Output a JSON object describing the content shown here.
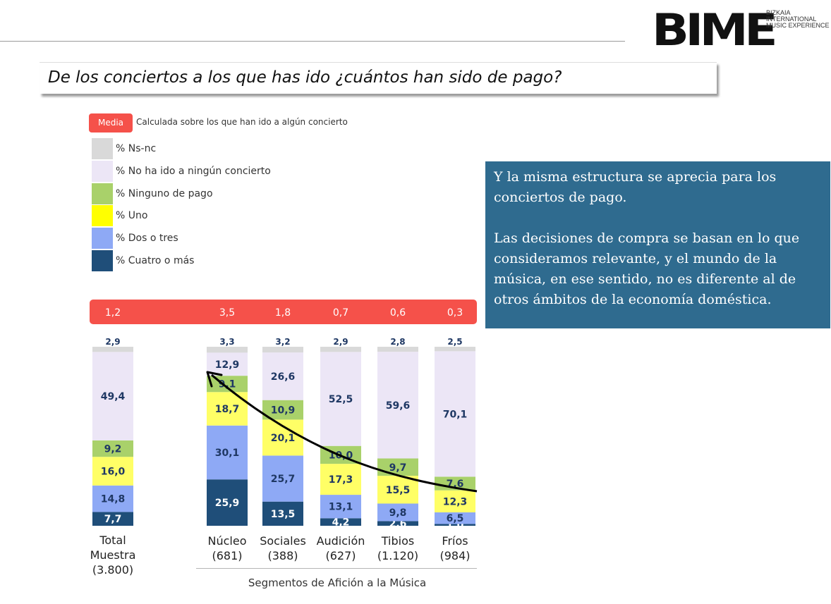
{
  "header": {
    "question": "De los conciertos a los que has ido ¿cuántos han sido de pago?",
    "logo": {
      "word": "BIME",
      "lines": [
        "BIZKAIA",
        "INTERNATIONAL",
        "MUSIC EXPERIENCE"
      ]
    }
  },
  "media_badge": "Media",
  "media_note": "Calculada sobre los que han ido a algún concierto",
  "legend": [
    {
      "label": "% Ns-nc",
      "color": "#d9d9d9"
    },
    {
      "label": "% No ha ido a ningún concierto",
      "color": "#ece6f6"
    },
    {
      "label": "% Ninguno de pago",
      "color": "#a9d16a"
    },
    {
      "label": "% Uno",
      "color": "#ffff00"
    },
    {
      "label": "% Dos o tres",
      "color": "#8ea9f5"
    },
    {
      "label": "% Cuatro o más",
      "color": "#1f4e79"
    }
  ],
  "text_box": {
    "paragraph1": "Y la misma estructura se aprecia para los conciertos de pago.",
    "paragraph2": "Las decisiones de compra se basan en lo que consideramos relevante, y el mundo de la música, en ese sentido, no es diferente al de otros ámbitos de la economía doméstica."
  },
  "group_label": "Segmentos de Afición a la Música",
  "chart_data": {
    "type": "bar",
    "stacked": true,
    "categories": [
      "Total Muestra (3.800)",
      "Núcleo (681)",
      "Sociales (388)",
      "Audición (627)",
      "Tibios (1.120)",
      "Fríos (984)"
    ],
    "category_lines": [
      [
        "Total",
        "Muestra",
        "(3.800)"
      ],
      [
        "Núcleo",
        "(681)"
      ],
      [
        "Sociales",
        "(388)"
      ],
      [
        "Audición",
        "(627)"
      ],
      [
        "Tibios",
        "(1.120)"
      ],
      [
        "Fríos",
        "(984)"
      ]
    ],
    "media": [
      "1,2",
      "3,5",
      "1,8",
      "0,7",
      "0,6",
      "0,3"
    ],
    "series": [
      {
        "name": "% Cuatro o más",
        "color": "#1f4e79",
        "values": [
          7.7,
          25.9,
          13.5,
          4.2,
          2.6,
          1.0
        ],
        "labels": [
          "7,7",
          "25,9",
          "13,5",
          "4,2",
          "2,6",
          "1,0"
        ]
      },
      {
        "name": "% Dos o tres",
        "color": "#8ea9f5",
        "values": [
          14.8,
          30.1,
          25.7,
          13.1,
          9.8,
          6.5
        ],
        "labels": [
          "14,8",
          "30,1",
          "25,7",
          "13,1",
          "9,8",
          "6,5"
        ]
      },
      {
        "name": "% Uno",
        "color": "#ffff66",
        "values": [
          16.0,
          18.7,
          20.1,
          17.3,
          15.5,
          12.3
        ],
        "labels": [
          "16,0",
          "18,7",
          "20,1",
          "17,3",
          "15,5",
          "12,3"
        ]
      },
      {
        "name": "% Ninguno de pago",
        "color": "#a9d16a",
        "values": [
          9.2,
          9.1,
          10.9,
          10.0,
          9.7,
          7.6
        ],
        "labels": [
          "9,2",
          "9,1",
          "10,9",
          "10,0",
          "9,7",
          "7,6"
        ]
      },
      {
        "name": "% No ha ido a ningún concierto",
        "color": "#ece6f6",
        "values": [
          49.4,
          12.9,
          26.6,
          52.5,
          59.6,
          70.1
        ],
        "labels": [
          "49,4",
          "12,9",
          "26,6",
          "52,5",
          "59,6",
          "70,1"
        ]
      },
      {
        "name": "% Ns-nc",
        "color": "#d9d9d9",
        "values": [
          2.9,
          3.3,
          3.2,
          2.9,
          2.8,
          2.5
        ],
        "labels": [
          "2,9",
          "3,3",
          "3,2",
          "2,9",
          "2,8",
          "2,5"
        ]
      }
    ],
    "ylim": [
      0,
      100
    ],
    "grid": false,
    "legend_position": "top-left"
  }
}
